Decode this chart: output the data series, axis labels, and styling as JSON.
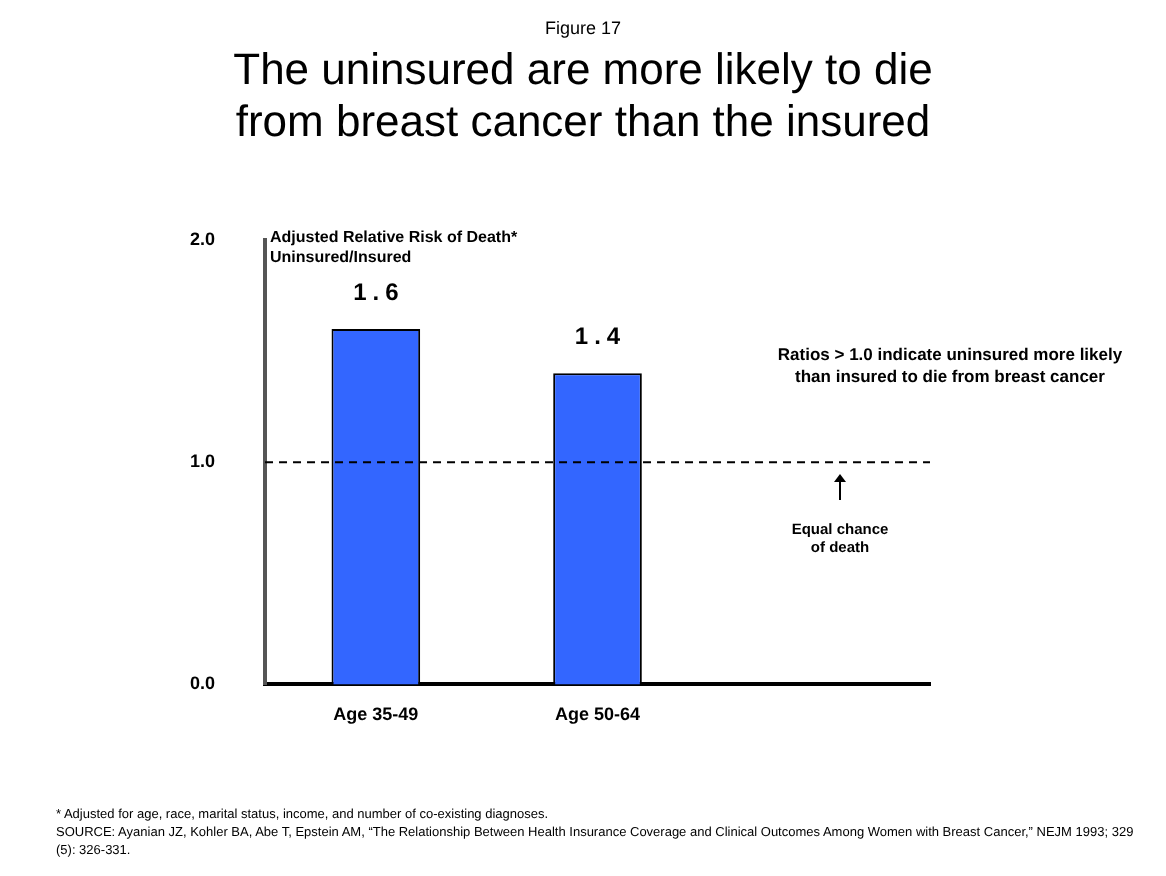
{
  "chart_data": {
    "type": "bar",
    "subtitle": "Figure 17",
    "title": "The uninsured are more likely to die from breast cancer than the insured",
    "ylabel": "Adjusted Relative Risk of Death*\nUninsured/Insured",
    "categories": [
      "Age 35-49",
      "Age 50-64",
      null
    ],
    "values": [
      1.6,
      1.4,
      null
    ],
    "color": "#3366ff",
    "data_labels": true,
    "ylim": [
      0,
      2
    ],
    "yticks": [
      {
        "value": 0,
        "label": "0.0"
      },
      {
        "value": 1,
        "label": "1.0"
      },
      {
        "value": 2,
        "label": "2.0"
      }
    ],
    "grid": false,
    "legend": false,
    "ref_lines": [
      {
        "axis": "y",
        "value": 1,
        "label": "Equal chance\nof death",
        "color": "#000000",
        "line_style": "dashed"
      }
    ],
    "annotations": [
      "Ratios > 1.0 indicate uninsured more likely\nthan insured to die from breast cancer",
      "* Adjusted for age, race, marital status, income, and number of co-existing diagnoses.",
      "SOURCE: Ayanian JZ, Kohler BA, Abe T, Epstein AM, “The Relationship Between Health Insurance Coverage and Clinical Outcomes Among Women with Breast Cancer,” NEJM 1993; 329 (5): 326-331."
    ]
  }
}
